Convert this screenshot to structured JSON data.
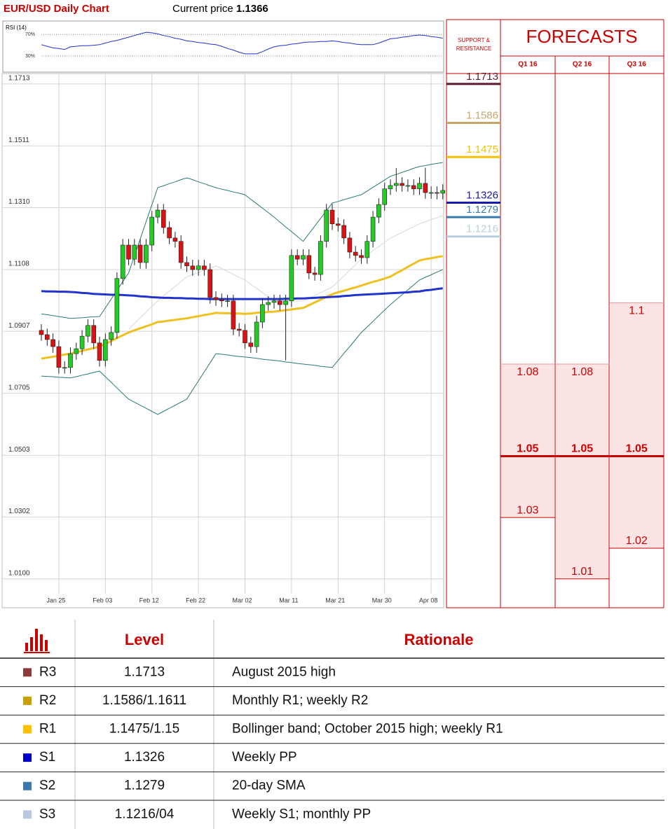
{
  "header": {
    "title": "EUR/USD Daily Chart",
    "price_label": "Current price",
    "price": "1.1366"
  },
  "chart_data": [
    {
      "type": "candlestick",
      "ylim": [
        1.0006,
        1.1747
      ],
      "yticks": [
        1.1713,
        1.1511,
        {
          "value": 1.131,
          "label": "1.1310"
        },
        1.1108,
        1.0907,
        1.0705,
        1.0503,
        1.0302,
        {
          "value": 1.01,
          "label": "1.0100"
        }
      ],
      "grid": true,
      "up_color": "#22cc22",
      "down_color": "#dd1111",
      "categories": [
        null,
        null,
        null,
        "Jan 25",
        null,
        null,
        null,
        null,
        null,
        null,
        null,
        "Feb 03",
        null,
        null,
        null,
        null,
        null,
        null,
        null,
        "Feb 12",
        null,
        null,
        null,
        null,
        null,
        null,
        null,
        "Feb 22",
        null,
        null,
        null,
        null,
        null,
        null,
        null,
        "Mar 02",
        null,
        null,
        null,
        null,
        null,
        null,
        null,
        "Mar 11",
        null,
        null,
        null,
        null,
        null,
        null,
        null,
        "Mar 21",
        null,
        null,
        null,
        null,
        null,
        null,
        null,
        "Mar 30",
        null,
        null,
        null,
        null,
        null,
        null,
        null,
        "Apr 08",
        null,
        null
      ],
      "open": [
        1.091,
        1.0896,
        1.088,
        1.0857,
        1.0789,
        1.0789,
        1.0834,
        1.085,
        1.0891,
        1.0926,
        1.0869,
        1.0812,
        1.088,
        1.0903,
        1.1079,
        1.1188,
        1.1142,
        1.1188,
        1.1131,
        1.1188,
        1.1279,
        1.1302,
        1.1245,
        1.1211,
        1.12,
        1.1131,
        1.112,
        1.1108,
        1.112,
        1.1108,
        1.1017,
        1.101,
        1.1006,
        1.1006,
        1.0914,
        1.091,
        1.0869,
        1.0857,
        1.0937,
        1.0994,
        1.1001,
        1.1006,
        1.0994,
        1.1006,
        1.1154,
        1.1142,
        1.1154,
        1.1097,
        1.1092,
        1.12,
        1.1302,
        1.1257,
        1.1252,
        1.1211,
        1.1165,
        1.1154,
        1.1147,
        1.12,
        1.1279,
        1.132,
        1.1371,
        1.1382,
        1.1389,
        1.1382,
        1.1382,
        1.1371,
        1.1389,
        1.1359,
        1.1359,
        1.1357
      ],
      "high": [
        1.093,
        1.0916,
        1.09,
        1.0877,
        1.0809,
        1.0854,
        1.087,
        1.0911,
        1.0946,
        1.0946,
        1.0889,
        1.09,
        1.0923,
        1.1099,
        1.1208,
        1.1208,
        1.1208,
        1.1208,
        1.1208,
        1.1299,
        1.1322,
        1.1322,
        1.1265,
        1.1231,
        1.122,
        1.1151,
        1.114,
        1.114,
        1.114,
        1.1128,
        1.1037,
        1.103,
        1.1026,
        1.1026,
        1.0934,
        1.093,
        1.0889,
        1.0957,
        1.1014,
        1.1021,
        1.1026,
        1.1026,
        1.1026,
        1.1174,
        1.1174,
        1.1174,
        1.1174,
        1.1117,
        1.122,
        1.1322,
        1.1322,
        1.1277,
        1.1272,
        1.1231,
        1.1185,
        1.1174,
        1.122,
        1.1299,
        1.134,
        1.1391,
        1.1402,
        1.1439,
        1.1409,
        1.1402,
        1.1402,
        1.1409,
        1.144,
        1.1379,
        1.1379,
        1.1386
      ],
      "low": [
        1.0876,
        1.086,
        1.0837,
        1.0769,
        1.0769,
        1.0769,
        1.0814,
        1.083,
        1.0871,
        1.0849,
        1.0792,
        1.0792,
        1.086,
        1.0883,
        1.1059,
        1.1122,
        1.1122,
        1.1111,
        1.1111,
        1.1168,
        1.1259,
        1.1225,
        1.1191,
        1.118,
        1.1111,
        1.11,
        1.1088,
        1.1088,
        1.1088,
        1.0997,
        1.099,
        1.0986,
        1.0986,
        1.0894,
        1.089,
        1.0849,
        1.0837,
        1.0837,
        1.0917,
        1.0974,
        1.0981,
        1.0974,
        1.0812,
        1.0986,
        1.1122,
        1.1122,
        1.1077,
        1.1072,
        1.1072,
        1.118,
        1.1237,
        1.1232,
        1.1191,
        1.1145,
        1.1134,
        1.1127,
        1.1127,
        1.118,
        1.1259,
        1.13,
        1.1351,
        1.1362,
        1.1362,
        1.1362,
        1.1351,
        1.1351,
        1.1339,
        1.1339,
        1.1337,
        1.1337
      ],
      "close": [
        1.0896,
        1.088,
        1.0857,
        1.0789,
        1.0789,
        1.0834,
        1.085,
        1.0891,
        1.0926,
        1.0869,
        1.0812,
        1.088,
        1.0903,
        1.1079,
        1.1188,
        1.1142,
        1.1188,
        1.1131,
        1.1188,
        1.1279,
        1.1302,
        1.1245,
        1.1211,
        1.12,
        1.1131,
        1.112,
        1.1108,
        1.112,
        1.1108,
        1.1017,
        1.101,
        1.1006,
        1.1006,
        1.0914,
        1.091,
        1.0869,
        1.0857,
        1.0937,
        1.0994,
        1.1001,
        1.1006,
        1.0994,
        1.1006,
        1.1154,
        1.1142,
        1.1154,
        1.1097,
        1.1092,
        1.12,
        1.1302,
        1.1257,
        1.1252,
        1.1211,
        1.1165,
        1.1154,
        1.1147,
        1.12,
        1.1279,
        1.132,
        1.1371,
        1.1382,
        1.1389,
        1.1382,
        1.1382,
        1.1371,
        1.1389,
        1.1359,
        1.1359,
        1.1357,
        1.1366
      ],
      "overlays": [
        {
          "color": "#d8d8d8",
          "width": 1,
          "values": [
            null,
            null,
            null,
            null,
            null,
            null,
            null,
            null,
            null,
            null,
            null,
            null,
            null,
            null,
            null,
            1.0914,
            1.0932,
            1.0951,
            1.0969,
            1.0988,
            1.1006,
            1.1022,
            1.1038,
            1.1053,
            1.1069,
            1.1085,
            1.1092,
            1.1099,
            1.1106,
            1.1113,
            1.112,
            1.1111,
            1.1102,
            1.1092,
            1.1083,
            1.1074,
            1.106,
            1.1047,
            1.1033,
            1.102,
            1.1006,
            1.1006,
            1.1006,
            1.1006,
            1.1006,
            1.1006,
            1.1015,
            1.1024,
            1.1033,
            1.1042,
            1.1051,
            1.1069,
            1.1087,
            1.1106,
            1.1124,
            1.1142,
            1.1156,
            1.117,
            1.1183,
            1.1197,
            1.1211,
            1.122,
            1.1229,
            1.1239,
            1.1248,
            1.1257,
            1.1264,
            1.1271,
            1.1277,
            1.1284
          ]
        },
        {
          "color": "#2a7a7a",
          "width": 1,
          "values": [
            1.0964,
            1.0961,
            1.0958,
            1.0955,
            1.0952,
            1.0949,
            1.095,
            1.0951,
            1.0953,
            1.0954,
            1.0955,
            1.0983,
            1.1012,
            1.104,
            1.1069,
            1.1097,
            1.1153,
            1.1208,
            1.1264,
            1.1319,
            1.1375,
            1.1381,
            1.1388,
            1.1394,
            1.1401,
            1.1407,
            1.1401,
            1.1394,
            1.1388,
            1.1381,
            1.1375,
            1.137,
            1.1366,
            1.1361,
            1.1357,
            1.1352,
            1.1337,
            1.1323,
            1.1308,
            1.1294,
            1.1279,
            1.1263,
            1.1247,
            1.1232,
            1.1216,
            1.12,
            1.1225,
            1.125,
            1.1275,
            1.13,
            1.1325,
            1.133,
            1.1336,
            1.1341,
            1.1347,
            1.1352,
            1.1364,
            1.1376,
            1.1388,
            1.14,
            1.1412,
            1.1418,
            1.1425,
            1.1431,
            1.1438,
            1.1444,
            1.1447,
            1.1451,
            1.1454,
            1.1457
          ]
        },
        {
          "color": "#2a7a7a",
          "width": 1,
          "values": [
            1.0761,
            1.076,
            1.0759,
            1.0757,
            1.0756,
            1.0755,
            1.0759,
            1.0764,
            1.0768,
            1.0773,
            1.0777,
            1.0759,
            1.0741,
            1.0722,
            1.0704,
            1.0686,
            1.0676,
            1.0666,
            1.0656,
            1.0646,
            1.0636,
            1.0646,
            1.0656,
            1.0666,
            1.0676,
            1.0686,
            1.0716,
            1.0745,
            1.0775,
            1.0804,
            1.0834,
            1.0832,
            1.083,
            1.0827,
            1.0825,
            1.0823,
            1.0821,
            1.0819,
            1.0816,
            1.0814,
            1.0812,
            1.081,
            1.0807,
            1.0805,
            1.0802,
            1.08,
            1.0798,
            1.0796,
            1.0793,
            1.0791,
            1.0789,
            1.0812,
            1.0835,
            1.0857,
            1.088,
            1.0903,
            1.0921,
            1.0939,
            1.0958,
            1.0976,
            1.0994,
            1.101,
            1.1026,
            1.1042,
            1.1058,
            1.1074,
            1.1083,
            1.1091,
            1.11,
            1.1108
          ]
        },
        {
          "color": "#f0c020",
          "width": 3,
          "values": [
            1.0818,
            1.0821,
            1.0824,
            1.0828,
            1.0831,
            1.0834,
            1.0839,
            1.0843,
            1.0848,
            1.0852,
            1.0857,
            1.0866,
            1.0875,
            1.0885,
            1.0894,
            1.0903,
            1.091,
            1.0917,
            1.0923,
            1.093,
            1.0937,
            1.0939,
            1.0942,
            1.0944,
            1.0947,
            1.0949,
            1.0953,
            1.0956,
            1.096,
            1.0963,
            1.0967,
            1.0966,
            1.0966,
            1.0965,
            1.0965,
            1.0964,
            1.0965,
            1.0967,
            1.0968,
            1.097,
            1.0971,
            1.0973,
            1.0976,
            1.0978,
            1.0981,
            1.0983,
            1.0992,
            1.1001,
            1.101,
            1.1019,
            1.1028,
            1.1034,
            1.1039,
            1.1045,
            1.105,
            1.1056,
            1.1062,
            1.1068,
            1.1073,
            1.1079,
            1.1085,
            1.1096,
            1.1106,
            1.1117,
            1.1127,
            1.1138,
            1.1142,
            1.1145,
            1.1149,
            1.1152
          ]
        },
        {
          "color": "#2233cc",
          "width": 3,
          "values": [
            1.1038,
            1.1037,
            1.1037,
            1.1036,
            1.1036,
            1.1035,
            1.1034,
            1.1032,
            1.1031,
            1.1029,
            1.1028,
            1.1027,
            1.1026,
            1.1026,
            1.1025,
            1.1024,
            1.1023,
            1.1021,
            1.102,
            1.1018,
            1.1017,
            1.1016,
            1.1016,
            1.1015,
            1.1015,
            1.1014,
            1.1014,
            1.1013,
            1.1013,
            1.1012,
            1.1012,
            1.1012,
            1.1012,
            1.1012,
            1.1012,
            1.1012,
            1.1012,
            1.1012,
            1.1012,
            1.1012,
            1.1012,
            1.1012,
            1.1013,
            1.1013,
            1.1014,
            1.1014,
            1.1015,
            1.1016,
            1.1017,
            1.1018,
            1.1019,
            1.102,
            1.1022,
            1.1023,
            1.1025,
            1.1026,
            1.1027,
            1.1028,
            1.1029,
            1.103,
            1.1031,
            1.1032,
            1.1033,
            1.1034,
            1.1036,
            1.1037,
            1.104,
            1.1042,
            1.1045,
            1.1047
          ]
        }
      ],
      "levels_title": "SUPPORT & RESISTANCE",
      "levels": [
        {
          "value": 1.1713,
          "color": "#5a1a2a"
        },
        {
          "value": 1.1586,
          "color": "#c8a46a"
        },
        {
          "value": 1.1475,
          "color": "#f2c200"
        },
        {
          "value": 1.1326,
          "color": "#1a1aa8"
        },
        {
          "value": 1.1279,
          "color": "#3a7aaa"
        },
        {
          "value": 1.1216,
          "color": "#b8d0dc"
        }
      ]
    },
    {
      "type": "line",
      "title": "RSI (14)",
      "color": "#2233cc",
      "ylim": [
        0,
        95
      ],
      "yticks": [
        {
          "value": 70,
          "label": "70%"
        },
        {
          "value": 30,
          "label": "30%"
        }
      ],
      "values": [
        51,
        48,
        45,
        44,
        42,
        47,
        48,
        49,
        49,
        50,
        51,
        54,
        57,
        59,
        62,
        65,
        68,
        71,
        74,
        73,
        71,
        68,
        66,
        63,
        61,
        58,
        57,
        55,
        54,
        52,
        51,
        48,
        44,
        41,
        37,
        34,
        34,
        34,
        38,
        43,
        47,
        49,
        50,
        52,
        53,
        55,
        56,
        56,
        57,
        57,
        58,
        57,
        55,
        54,
        52,
        51,
        51,
        51,
        54,
        58,
        62,
        63,
        65,
        66,
        68,
        69,
        68,
        66,
        65,
        63
      ]
    },
    {
      "type": "range",
      "title": "FORECASTS",
      "ylim": [
        1.0006,
        1.1747
      ],
      "color": "#cc0000",
      "fill": "#fde4e4",
      "categories": [
        "Q1 16",
        "Q2 16",
        "Q3 16"
      ],
      "high": [
        1.08,
        1.08,
        1.1
      ],
      "median": [
        1.05,
        1.05,
        1.05
      ],
      "low": [
        1.03,
        1.01,
        1.02
      ]
    }
  ],
  "table": {
    "header": [
      "Level",
      "Rationale"
    ],
    "rows": [
      {
        "name": "R3",
        "color": "#8b3a3a",
        "level": "1.1713",
        "rationale": "August 2015 high"
      },
      {
        "name": "R2",
        "color": "#c9a000",
        "level": "1.1586/1.1611",
        "rationale": "Monthly R1; weekly R2"
      },
      {
        "name": "R1",
        "color": "#ffc000",
        "level": "1.1475/1.15",
        "rationale": "Bollinger band; October 2015 high; weekly R1"
      },
      {
        "name": "S1",
        "color": "#0000cc",
        "level": "1.1326",
        "rationale": "Weekly PP"
      },
      {
        "name": "S2",
        "color": "#3a78b0",
        "level": "1.1279",
        "rationale": "20-day SMA"
      },
      {
        "name": "S3",
        "color": "#b8c8e0",
        "level": "1.1216/04",
        "rationale": "Weekly S1; monthly PP"
      }
    ]
  }
}
